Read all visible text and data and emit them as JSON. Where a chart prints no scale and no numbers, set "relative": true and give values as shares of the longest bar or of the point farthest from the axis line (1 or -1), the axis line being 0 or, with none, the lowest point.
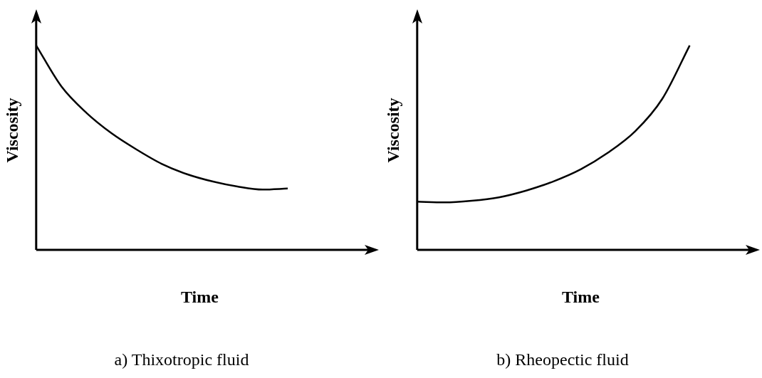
{
  "chart_data": [
    {
      "type": "line",
      "title": "a) Thixotropic fluid",
      "xlabel": "Time",
      "ylabel": "Viscosity",
      "relative": true,
      "grid": false,
      "legend": false,
      "marker": "none",
      "line_style": "solid",
      "categories": [
        null,
        null,
        null,
        null,
        null,
        null,
        null,
        null,
        null,
        null,
        null,
        null,
        null,
        null
      ],
      "series": [
        {
          "color": "#000000",
          "values": [
            1.0,
            0.8,
            0.67,
            0.57,
            0.49,
            0.42,
            0.37,
            0.335,
            0.31,
            0.295,
            0.3,
            null,
            null,
            null
          ]
        }
      ]
    },
    {
      "type": "line",
      "title": "b) Rheopectic fluid",
      "xlabel": "Time",
      "ylabel": "Viscosity",
      "relative": true,
      "grid": false,
      "legend": false,
      "marker": "none",
      "line_style": "solid",
      "categories": [
        null,
        null,
        null,
        null,
        null,
        null,
        null,
        null,
        null,
        null,
        null,
        null,
        null
      ],
      "series": [
        {
          "color": "#000000",
          "values": [
            0.236,
            0.232,
            0.24,
            0.257,
            0.29,
            0.335,
            0.394,
            0.475,
            0.58,
            0.74,
            1.0,
            null,
            null
          ]
        }
      ]
    }
  ]
}
